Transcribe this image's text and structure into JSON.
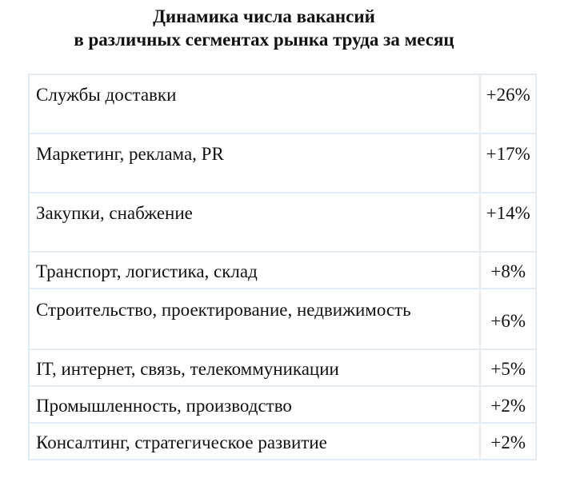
{
  "title": {
    "line1": "Динамика числа вакансий",
    "line2": "в различных сегментах рынка труда за месяц"
  },
  "rows": [
    {
      "segment": "Службы доставки",
      "change": "+26%"
    },
    {
      "segment": "Маркетинг, реклама, PR",
      "change": "+17%"
    },
    {
      "segment": "Закупки, снабжение",
      "change": "+14%"
    },
    {
      "segment": "Транспорт, логистика, склад",
      "change": "+8%"
    },
    {
      "segment": "Строительство, проектирование, недвижимость",
      "change": "+6%"
    },
    {
      "segment": "IT, интернет, связь, телекоммуникации",
      "change": "+5%"
    },
    {
      "segment": "Промышленность, производство",
      "change": "+2%"
    },
    {
      "segment": "Консалтинг, стратегическое развитие",
      "change": "+2%"
    }
  ]
}
